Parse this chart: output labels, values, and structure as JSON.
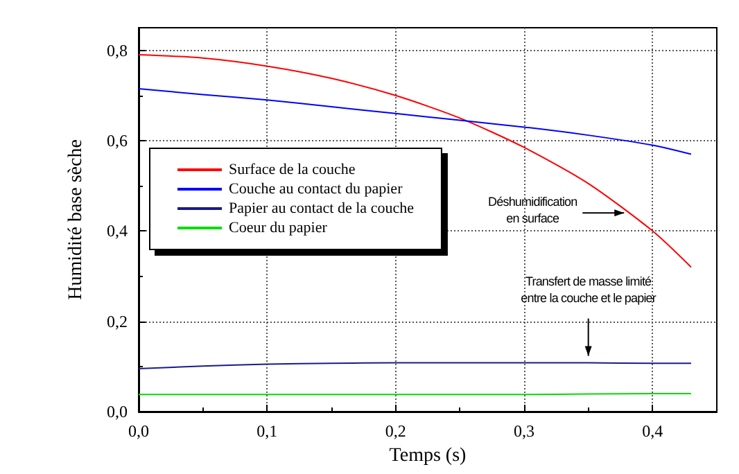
{
  "chart_data": {
    "type": "line",
    "xlabel": "Temps (s)",
    "ylabel": "Humidité base sèche",
    "x": [
      0,
      0.05,
      0.1,
      0.15,
      0.2,
      0.25,
      0.3,
      0.35,
      0.4,
      0.43
    ],
    "series": [
      {
        "name": "Surface de la couche",
        "color": "#ff0000",
        "values": [
          0.79,
          0.783,
          0.765,
          0.738,
          0.7,
          0.65,
          0.585,
          0.505,
          0.4,
          0.32
        ]
      },
      {
        "name": "Couche au contact du papier",
        "color": "#0000ff",
        "values": [
          0.715,
          0.702,
          0.69,
          0.675,
          0.66,
          0.645,
          0.63,
          0.612,
          0.59,
          0.57
        ]
      },
      {
        "name": "Papier au contact de la couche",
        "color": "#1a1a8c",
        "values": [
          0.095,
          0.101,
          0.105,
          0.107,
          0.108,
          0.108,
          0.108,
          0.108,
          0.107,
          0.107
        ]
      },
      {
        "name": "Coeur du papier",
        "color": "#00dd00",
        "values": [
          0.038,
          0.038,
          0.038,
          0.038,
          0.038,
          0.038,
          0.038,
          0.039,
          0.04,
          0.04
        ]
      }
    ],
    "xlim": [
      0,
      0.45
    ],
    "xticks": [
      {
        "value": 0,
        "label": "0,0"
      },
      {
        "value": 0.1,
        "label": "0,1"
      },
      {
        "value": 0.2,
        "label": "0,2"
      },
      {
        "value": 0.3,
        "label": "0,3"
      },
      {
        "value": 0.4,
        "label": "0,4"
      }
    ],
    "ylim": [
      0,
      0.85
    ],
    "yticks": [
      {
        "value": 0,
        "label": "0,0"
      },
      {
        "value": 0.2,
        "label": "0,2"
      },
      {
        "value": 0.4,
        "label": "0,4"
      },
      {
        "value": 0.6,
        "label": "0,6"
      },
      {
        "value": 0.8,
        "label": "0,8"
      }
    ],
    "grid": true,
    "legend": "left",
    "marker": "none",
    "line_style": "solid",
    "annotations": [
      {
        "text": "Déshumidification\nen surface",
        "x": 0.38,
        "y": 0.44
      },
      {
        "text": "Transfert de masse limité\nentre la couche et le papier",
        "x": 0.35,
        "y": 0.108
      }
    ]
  }
}
